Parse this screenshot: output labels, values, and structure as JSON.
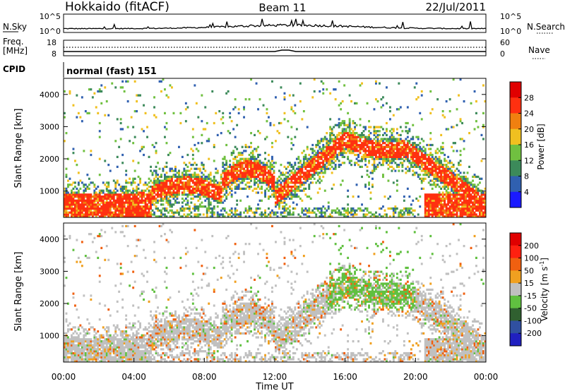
{
  "header": {
    "station": "Hokkaido (fitACF)",
    "beam": "Beam 11",
    "date": "22/Jul/2011"
  },
  "noise_panel": {
    "left_label": "N.Sky",
    "right_label": "N.Search",
    "ticks_left": [
      "10^5",
      "10^0"
    ],
    "ticks_right": [
      "10^5",
      "10^0"
    ]
  },
  "freq_panel": {
    "left_label_1": "Freq.",
    "left_label_2": "[MHz]",
    "ticks_left": [
      "18",
      "8"
    ],
    "right_label": "Nave",
    "ticks_right": [
      "60",
      "0"
    ]
  },
  "cpid": {
    "label": "CPID",
    "value": "normal (fast) 151"
  },
  "chart_data": [
    {
      "type": "heatmap",
      "ylabel": "Slant Range [km]",
      "xlabel": "",
      "yticks": [
        "4000",
        "3000",
        "2000",
        "1000"
      ],
      "ylim": [
        180,
        4500
      ],
      "xlim": [
        "00:00",
        "24:00"
      ],
      "colorbar": {
        "label": "Power [dB]",
        "ticks": [
          "4",
          "8",
          "12",
          "16",
          "20",
          "24",
          "28"
        ],
        "colors": [
          "#1a1aff",
          "#3060b0",
          "#3c8a5a",
          "#70c040",
          "#f0c020",
          "#f08010",
          "#ff3010",
          "#e00000"
        ]
      }
    },
    {
      "type": "heatmap",
      "ylabel": "Slant Range [km]",
      "xlabel": "Time UT",
      "yticks": [
        "4000",
        "3000",
        "2000",
        "1000"
      ],
      "ylim": [
        180,
        4500
      ],
      "xticks": [
        "00:00",
        "04:00",
        "08:00",
        "12:00",
        "16:00",
        "20:00",
        "00:00"
      ],
      "xlim": [
        "00:00",
        "24:00"
      ],
      "colorbar": {
        "label": "Velocity [m s",
        "label_sup": "-1",
        "label_end": "]",
        "ticks": [
          "200",
          "100",
          "50",
          "15",
          "-15",
          "-50",
          "-100",
          "-200"
        ],
        "colors": [
          "#2020c0",
          "#3050a0",
          "#306030",
          "#60c040",
          "#c0c0c0",
          "#f0a020",
          "#f06010",
          "#ff2010",
          "#e00000"
        ]
      }
    }
  ]
}
